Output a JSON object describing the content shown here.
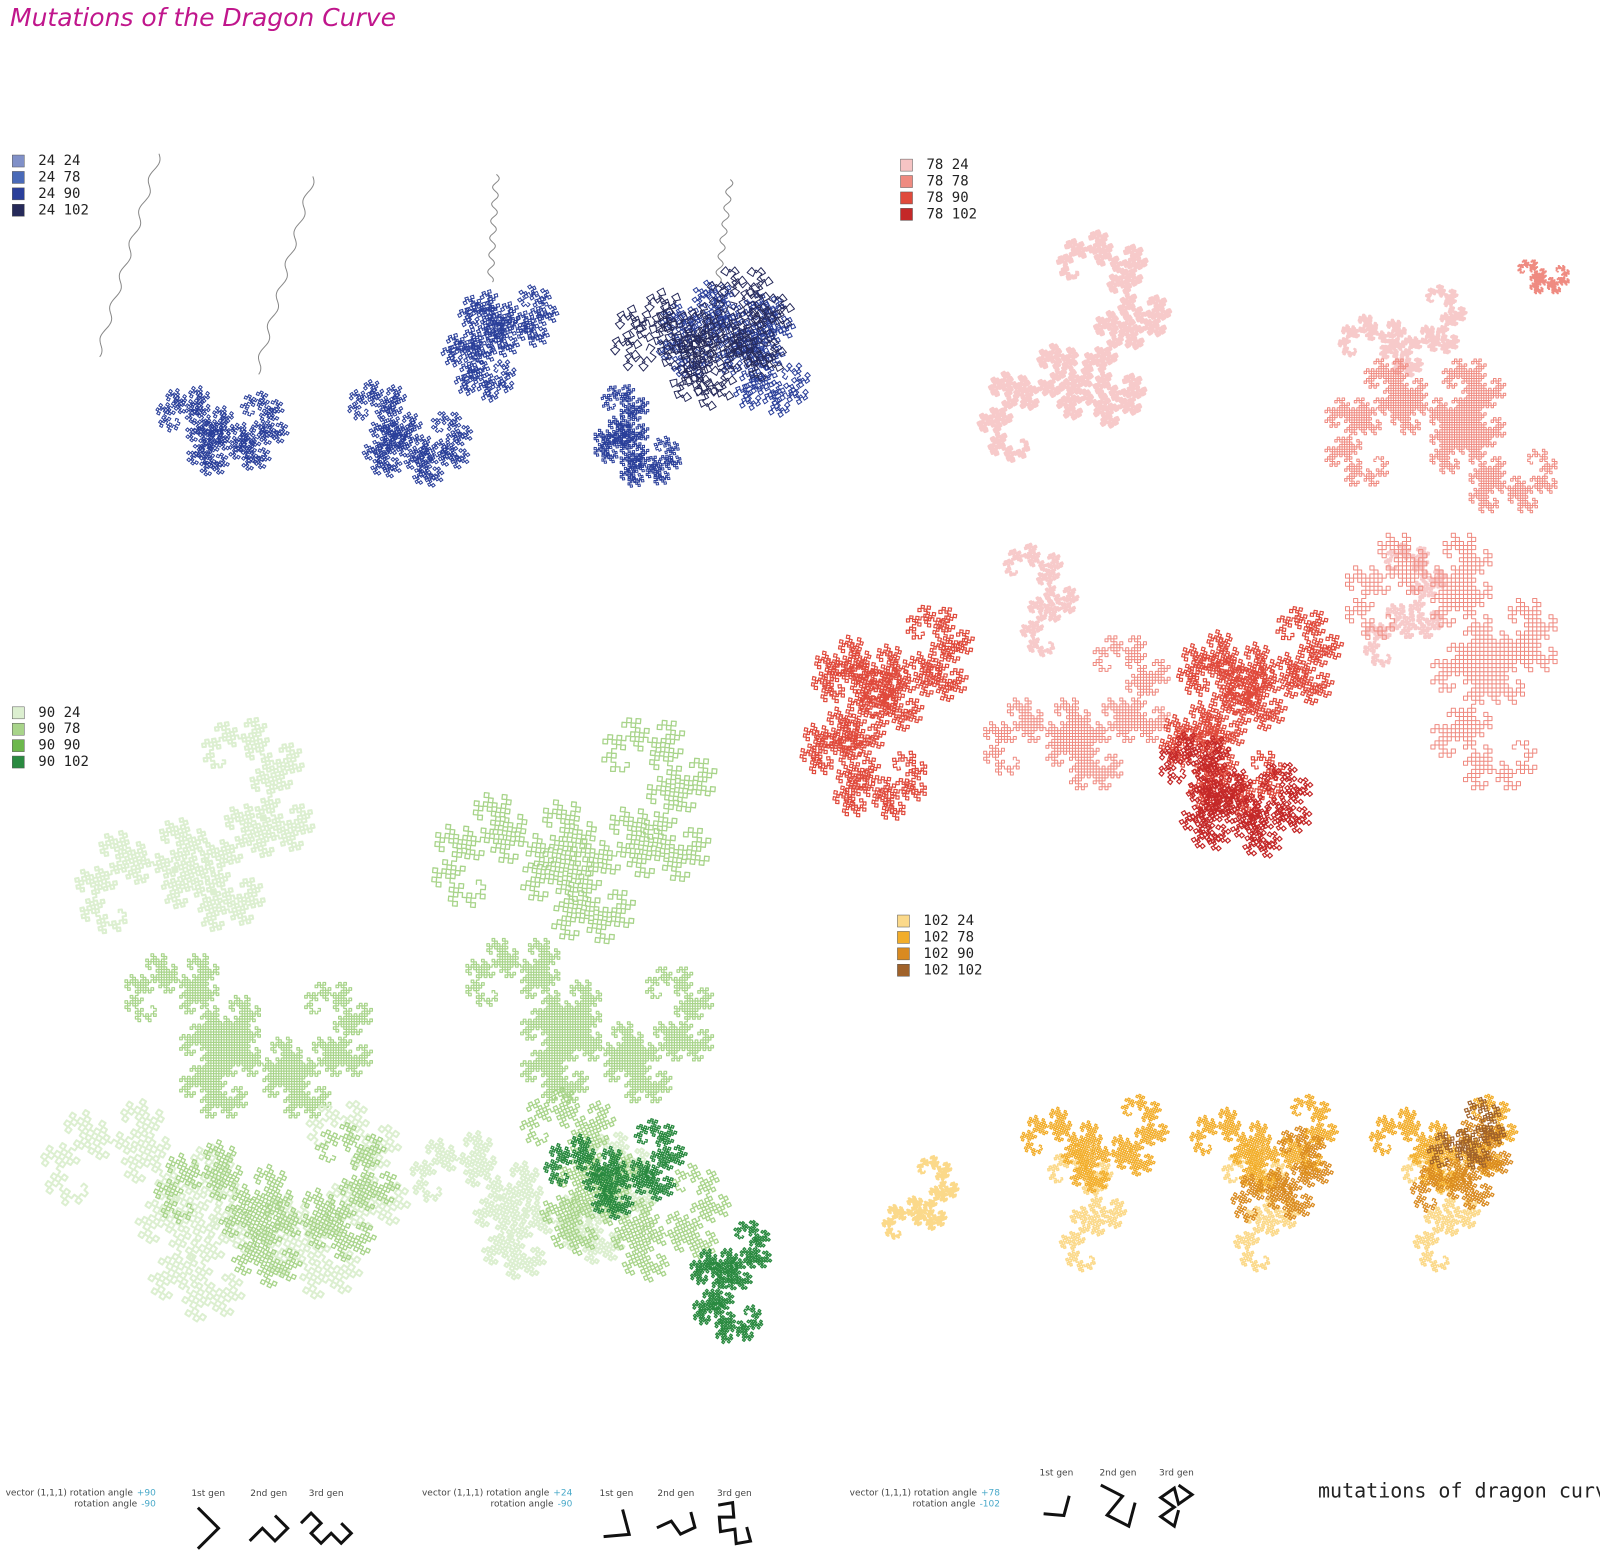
{
  "title": "Mutations of the Dragon Curve",
  "legends": [
    {
      "items": [
        {
          "label": "24 24",
          "color": "#8090c8"
        },
        {
          "label": "24 78",
          "color": "#4a6ab8"
        },
        {
          "label": "24 90",
          "color": "#2a3f9a"
        },
        {
          "label": "24 102",
          "color": "#262a5a"
        }
      ]
    },
    {
      "items": [
        {
          "label": "78 24",
          "color": "#f6c4c4"
        },
        {
          "label": "78 78",
          "color": "#ef8a80"
        },
        {
          "label": "78 90",
          "color": "#e04a3c"
        },
        {
          "label": "78 102",
          "color": "#c42828"
        }
      ]
    },
    {
      "items": [
        {
          "label": "90 24",
          "color": "#dcefd0"
        },
        {
          "label": "90 78",
          "color": "#a8d48a"
        },
        {
          "label": "90 90",
          "color": "#6cb84c"
        },
        {
          "label": "90 102",
          "color": "#2a8a40"
        }
      ]
    },
    {
      "items": [
        {
          "label": "102 24",
          "color": "#fbd98a"
        },
        {
          "label": "102 78",
          "color": "#f2ad2a"
        },
        {
          "label": "102 90",
          "color": "#d98a20"
        },
        {
          "label": "102 102",
          "color": "#a0622a"
        }
      ]
    }
  ],
  "annotations": [
    {
      "line1": "vector (1,1,1) rotation angle",
      "angle1": "+90",
      "line2": "rotation angle",
      "angle2": "-90",
      "gens": [
        "1st gen",
        "2nd gen",
        "3rd gen"
      ]
    },
    {
      "line1": "vector (1,1,1) rotation angle",
      "angle1": "+24",
      "line2": "rotation angle",
      "angle2": "-90",
      "gens": [
        "1st gen",
        "2nd gen",
        "3rd gen"
      ]
    },
    {
      "line1": "vector (1,1,1) rotation angle",
      "angle1": "+78",
      "line2": "rotation angle",
      "angle2": "-102",
      "gens": [
        "1st gen",
        "2nd gen",
        "3rd gen"
      ]
    }
  ],
  "footer": "mutations of dragon curve"
}
